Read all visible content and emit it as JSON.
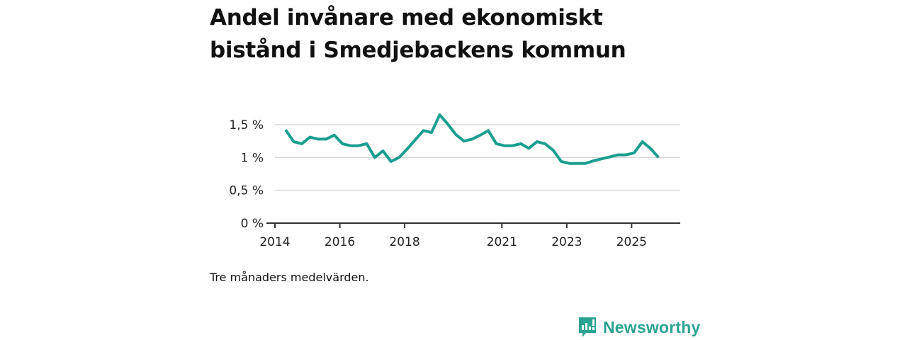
{
  "title_line1": "Andel invånare med ekonomiskt",
  "title_line2": "bistånd i Smedjebackens kommun",
  "caption": "Tre månaders medelvärden.",
  "brand": {
    "name": "Newsworthy",
    "icon": "newsworthy-logo-icon",
    "color": "#2aa393"
  },
  "chart_data": {
    "type": "line",
    "title": "Andel invånare med ekonomiskt bistånd i Smedjebackens kommun",
    "xlabel": "",
    "ylabel": "",
    "color": "#1a9e90",
    "grid": true,
    "xlim": [
      2014.0,
      2026.5
    ],
    "ylim": [
      0,
      1.7
    ],
    "yticks": [
      {
        "value": 0,
        "label": "0 %"
      },
      {
        "value": 0.5,
        "label": "0,5 %"
      },
      {
        "value": 1,
        "label": "1 %"
      },
      {
        "value": 1.5,
        "label": "1,5 %"
      }
    ],
    "xticks": [
      {
        "value": 2014,
        "label": "2014"
      },
      {
        "value": 2016,
        "label": "2016"
      },
      {
        "value": 2018,
        "label": "2018"
      },
      {
        "value": 2021,
        "label": "2021"
      },
      {
        "value": 2023,
        "label": "2023"
      },
      {
        "value": 2025,
        "label": "2025"
      }
    ],
    "series": [
      {
        "name": "Andel invånare med ekonomiskt bistånd",
        "x": [
          2014.33,
          2014.58,
          2014.83,
          2015.08,
          2015.33,
          2015.58,
          2015.83,
          2016.08,
          2016.33,
          2016.58,
          2016.83,
          2017.08,
          2017.33,
          2017.58,
          2017.83,
          2018.08,
          2018.33,
          2018.58,
          2018.83,
          2019.08,
          2019.33,
          2019.58,
          2019.83,
          2020.08,
          2020.33,
          2020.58,
          2020.83,
          2021.08,
          2021.33,
          2021.58,
          2021.83,
          2022.08,
          2022.33,
          2022.58,
          2022.83,
          2023.08,
          2023.33,
          2023.58,
          2023.83,
          2024.08,
          2024.33,
          2024.58,
          2024.83,
          2025.08,
          2025.33,
          2025.58,
          2025.83
        ],
        "values": [
          1.42,
          1.24,
          1.21,
          1.31,
          1.28,
          1.28,
          1.34,
          1.21,
          1.18,
          1.18,
          1.21,
          1.0,
          1.1,
          0.94,
          1.0,
          1.13,
          1.27,
          1.41,
          1.38,
          1.65,
          1.51,
          1.35,
          1.25,
          1.28,
          1.34,
          1.41,
          1.21,
          1.18,
          1.18,
          1.21,
          1.14,
          1.24,
          1.21,
          1.11,
          0.94,
          0.91,
          0.91,
          0.91,
          0.95,
          0.98,
          1.01,
          1.04,
          1.04,
          1.07,
          1.24,
          1.14,
          1.0
        ]
      }
    ]
  }
}
